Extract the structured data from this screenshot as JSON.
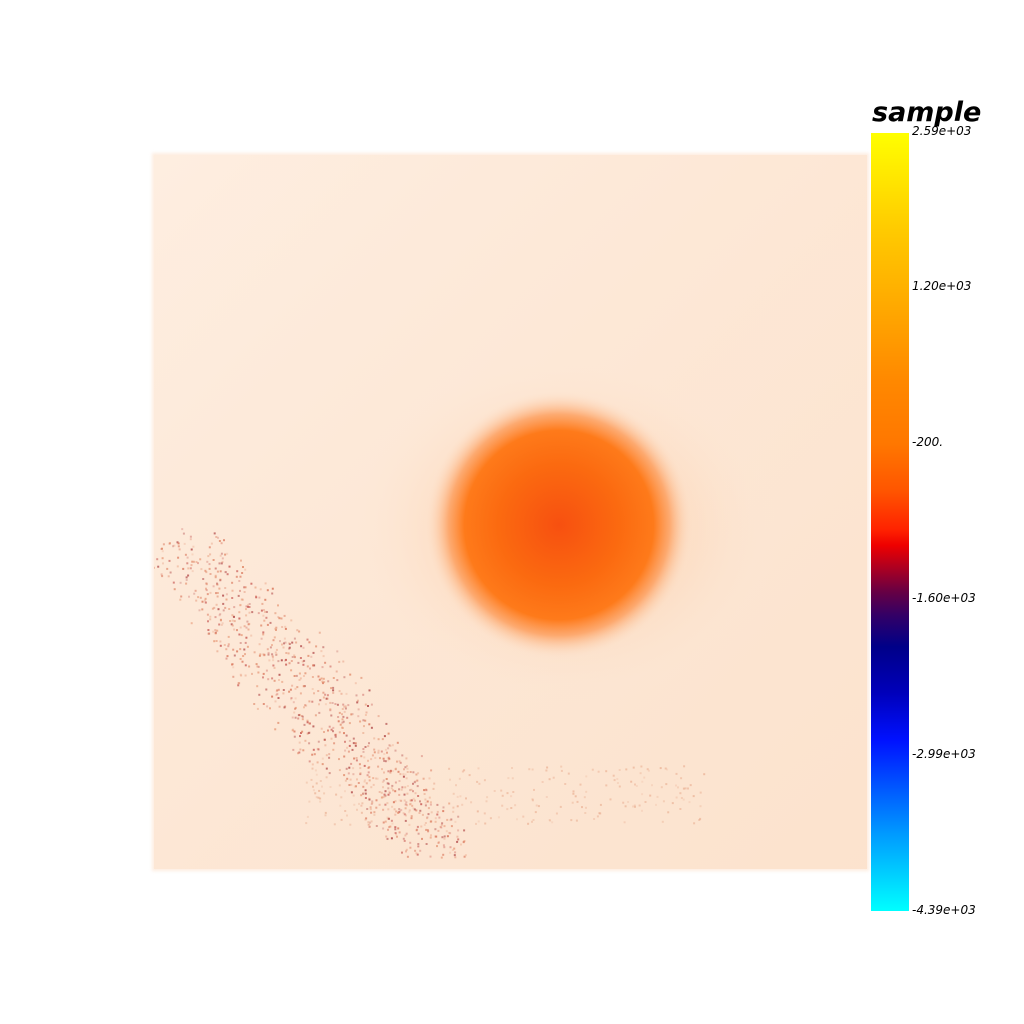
{
  "colorbar": {
    "title": "sample",
    "ticks": [
      "2.59e+03",
      "1.20e+03",
      "-200.",
      "-1.60e+03",
      "-2.99e+03",
      "-4.39e+03"
    ],
    "max": 2590,
    "min": -4390,
    "colormap": [
      "#ffff00",
      "#ff8800",
      "#ff0000",
      "#000088",
      "#0000ff",
      "#00ffff"
    ]
  },
  "scene": {
    "background": "#ffffff",
    "volume_color": "#fde9d8",
    "blob_color": "#ff6000"
  }
}
